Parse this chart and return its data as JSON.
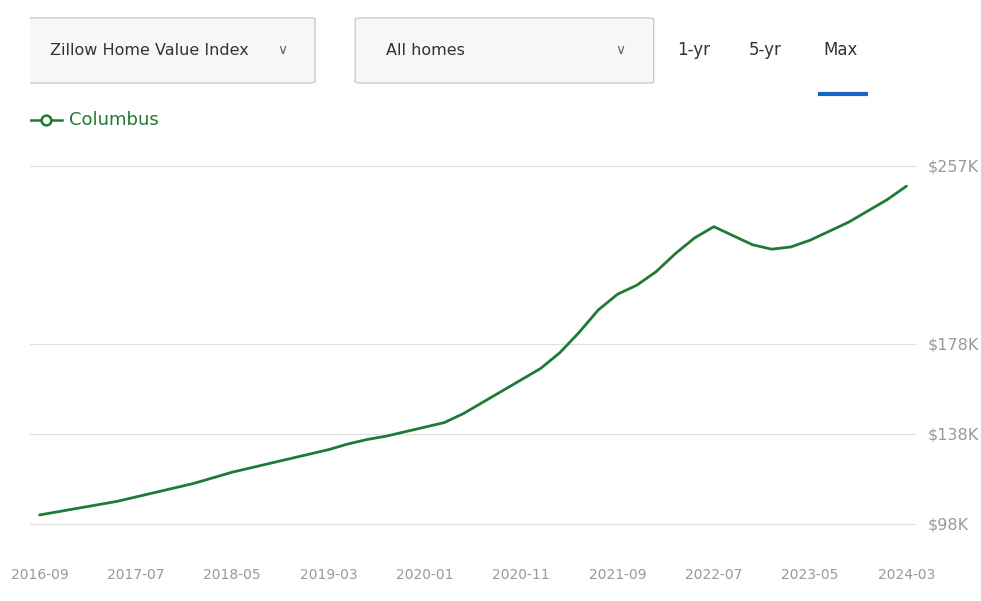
{
  "line_color": "#1e7a34",
  "legend_label": "Columbus",
  "legend_marker_color": "#1e7a34",
  "background_color": "#ffffff",
  "grid_color": "#e0e0e0",
  "axis_label_color": "#999999",
  "ytick_labels": [
    "$98K",
    "$138K",
    "$178K",
    "$257K"
  ],
  "ytick_values": [
    98000,
    138000,
    178000,
    257000
  ],
  "ylim": [
    82000,
    272000
  ],
  "xtick_labels": [
    "2016-09",
    "2017-07",
    "2018-05",
    "2019-03",
    "2020-01",
    "2020-11",
    "2021-09",
    "2022-07",
    "2023-05",
    "2024-03"
  ],
  "header_left1": "Zillow Home Value Index",
  "header_left2": "All homes",
  "header_right": [
    "1-yr",
    "5-yr",
    "Max"
  ],
  "header_active": "Max",
  "header_active_color": "#1565c0",
  "dates": [
    "2016-09",
    "2016-11",
    "2017-01",
    "2017-03",
    "2017-05",
    "2017-07",
    "2017-09",
    "2017-11",
    "2018-01",
    "2018-03",
    "2018-05",
    "2018-07",
    "2018-09",
    "2018-11",
    "2019-01",
    "2019-03",
    "2019-05",
    "2019-07",
    "2019-09",
    "2019-11",
    "2020-01",
    "2020-03",
    "2020-05",
    "2020-07",
    "2020-09",
    "2020-11",
    "2021-01",
    "2021-03",
    "2021-05",
    "2021-07",
    "2021-09",
    "2021-11",
    "2022-01",
    "2022-03",
    "2022-05",
    "2022-07",
    "2022-09",
    "2022-11",
    "2023-01",
    "2023-03",
    "2023-05",
    "2023-07",
    "2023-09",
    "2023-11",
    "2024-01",
    "2024-03"
  ],
  "values": [
    102000,
    103500,
    105000,
    106500,
    108000,
    110000,
    112000,
    114000,
    116000,
    118500,
    121000,
    123000,
    125000,
    127000,
    129000,
    131000,
    133500,
    135500,
    137000,
    139000,
    141000,
    143000,
    147000,
    152000,
    157000,
    162000,
    167000,
    174000,
    183000,
    193000,
    200000,
    204000,
    210000,
    218000,
    225000,
    230000,
    226000,
    222000,
    220000,
    221000,
    224000,
    228000,
    232000,
    237000,
    242000,
    248000
  ]
}
